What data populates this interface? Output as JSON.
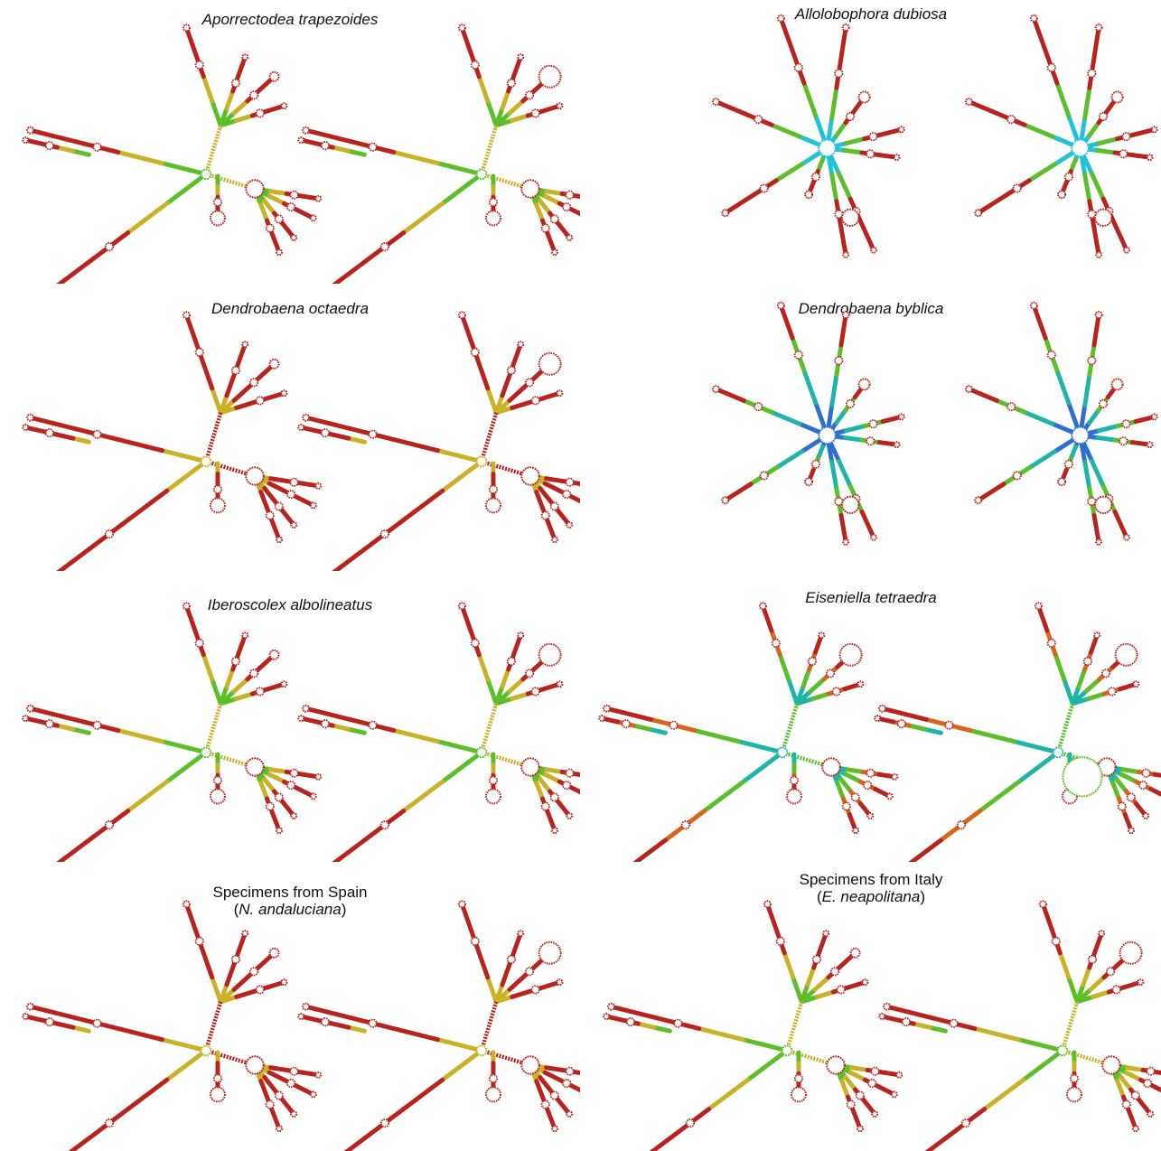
{
  "colors": {
    "high": "#b8231e",
    "mid_high": "#d9651b",
    "mid": "#c9b227",
    "yellow": "#e0d21f",
    "green": "#5bbf2a",
    "teal": "#1fb4a8",
    "cyan": "#22c2d6",
    "blue": "#2f6fd0",
    "loop_fill": "#ffffff"
  },
  "panels": [
    {
      "id": "p1",
      "title": "Aporrectodea trapezoides",
      "style": "A",
      "tint": "mixed"
    },
    {
      "id": "p2",
      "title": "Allolobophora dubiosa",
      "style": "B",
      "tint": "cyan"
    },
    {
      "id": "p3",
      "title": "Dendrobaena octaedra",
      "style": "A",
      "tint": "red"
    },
    {
      "id": "p4",
      "title": "Dendrobaena byblica",
      "style": "B",
      "tint": "blue"
    },
    {
      "id": "p5",
      "title": "Iberoscolex albolineatus",
      "style": "A",
      "tint": "mixed"
    },
    {
      "id": "p6",
      "title": "Eiseniella tetraedra",
      "style": "C",
      "tint": "teal"
    },
    {
      "id": "p7",
      "title": "Specimens from Spain",
      "subtitle_prefix": "(",
      "subtitle_species": "N. andaluciana",
      "subtitle_suffix": ")",
      "style": "A",
      "tint": "red"
    },
    {
      "id": "p8",
      "title": "Specimens from Italy",
      "subtitle_prefix": "(",
      "subtitle_species": "E. neapolitana",
      "subtitle_suffix": ")",
      "style": "A",
      "tint": "mixed"
    }
  ]
}
